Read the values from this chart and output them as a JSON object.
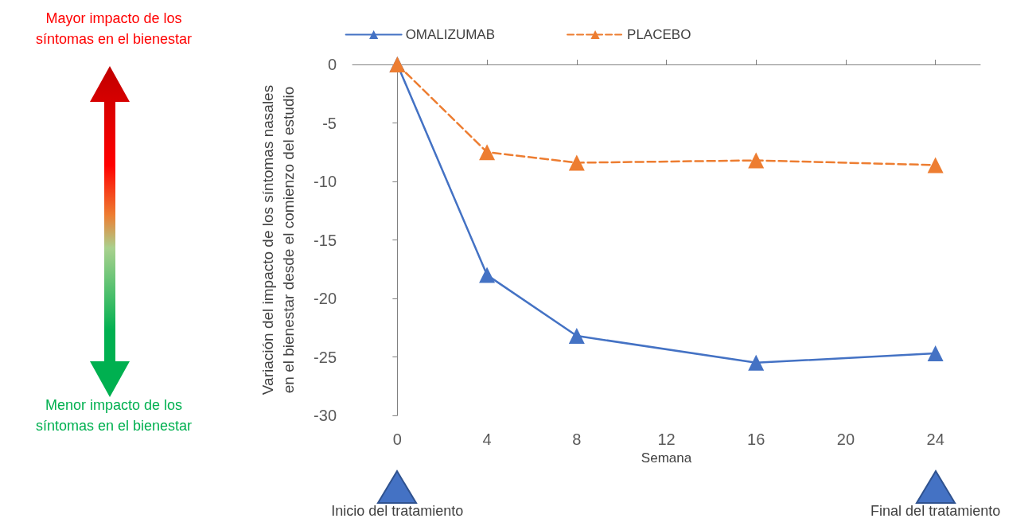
{
  "chart_data": {
    "type": "line",
    "xlabel": "Semana",
    "ylabel": "Variación del impacto de los síntomas nasales\nen el bienestar desde el comienzo del estudio",
    "x": [
      0,
      4,
      8,
      16,
      24
    ],
    "series": [
      {
        "name": "OMALIZUMAB",
        "color": "#4472c4",
        "line_style": "solid",
        "values": [
          0,
          -18,
          -23.2,
          -25.5,
          -24.7
        ]
      },
      {
        "name": "PLACEBO",
        "color": "#ed7d31",
        "line_style": "dashed",
        "values": [
          0,
          -7.5,
          -8.4,
          -8.2,
          -8.6
        ]
      }
    ],
    "xlim": [
      -2,
      26
    ],
    "xticks": [
      0,
      4,
      8,
      12,
      16,
      20,
      24
    ],
    "ylim": [
      -30,
      0
    ],
    "yticks": [
      -30,
      -25,
      -20,
      -15,
      -10,
      -5,
      0
    ],
    "marker": "triangle",
    "legend": "top",
    "annotations": [
      "Mayor impacto de los síntomas en el bienestar",
      "Menor impacto de los síntomas en el bienestar",
      "Inicio del tratamiento",
      "Final del tratamiento"
    ]
  }
}
